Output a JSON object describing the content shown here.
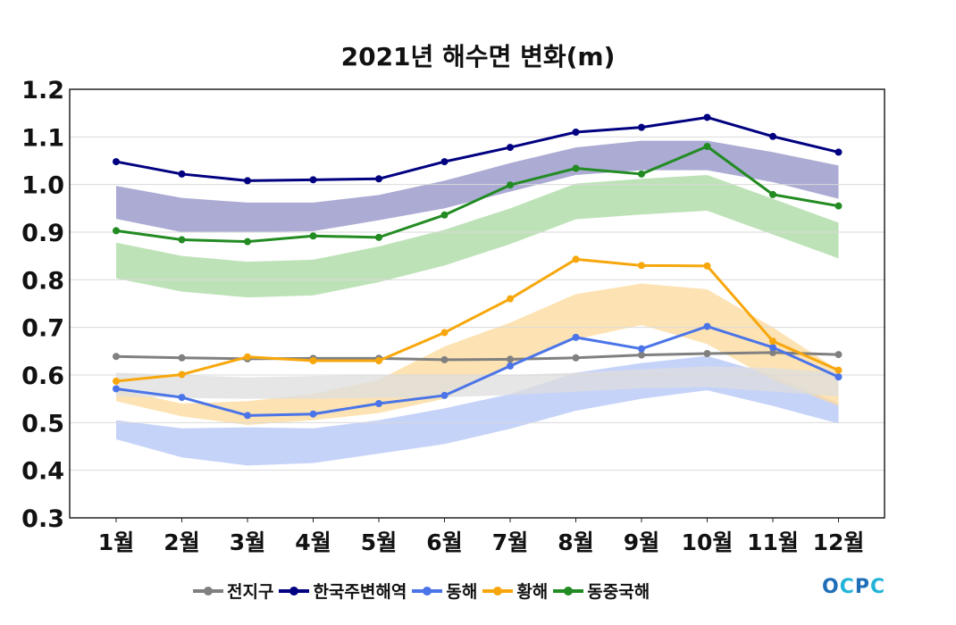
{
  "title": "2021년 해수면 변화(m)",
  "logo_text": "OCPC",
  "colors": {
    "global": "#808080",
    "korea": "#000080",
    "east_sea": "#4a74e8",
    "yellow_sea": "#f7a70c",
    "ecs": "#228b22",
    "band_korea": "#8f8fc6",
    "band_ecs": "#a8d8a0",
    "band_yellow": "#fcd99a",
    "band_east": "#b3c4f7",
    "band_global": "#dedede",
    "logo_blue": "#1f6fb8",
    "logo_cyan": "#22b4d8"
  },
  "chart_data": {
    "type": "line",
    "title": "2021년 해수면 변화(m)",
    "categories": [
      "1월",
      "2월",
      "3월",
      "4월",
      "5월",
      "6월",
      "7월",
      "8월",
      "9월",
      "10월",
      "11월",
      "12월"
    ],
    "ylim": [
      0.3,
      1.2
    ],
    "yticks": [
      "0.3",
      "0.4",
      "0.5",
      "0.6",
      "0.7",
      "0.8",
      "0.9",
      "1.0",
      "1.1",
      "1.2"
    ],
    "grid": true,
    "legend_position": "bottom",
    "series": [
      {
        "name": "전지구",
        "color": "#808080",
        "values": [
          0.639,
          0.636,
          0.634,
          0.635,
          0.635,
          0.632,
          0.633,
          0.636,
          0.642,
          0.645,
          0.647,
          0.643
        ]
      },
      {
        "name": "한국주변해역",
        "color": "#000080",
        "values": [
          1.048,
          1.022,
          1.008,
          1.01,
          1.012,
          1.048,
          1.078,
          1.11,
          1.12,
          1.141,
          1.101,
          1.068
        ]
      },
      {
        "name": "동해",
        "color": "#4a74e8",
        "values": [
          0.571,
          0.553,
          0.515,
          0.518,
          0.54,
          0.557,
          0.619,
          0.679,
          0.655,
          0.702,
          0.658,
          0.596
        ]
      },
      {
        "name": "황해",
        "color": "#f7a70c",
        "values": [
          0.587,
          0.601,
          0.638,
          0.63,
          0.63,
          0.689,
          0.76,
          0.843,
          0.83,
          0.829,
          0.671,
          0.61
        ]
      },
      {
        "name": "동중국해",
        "color": "#228b22",
        "values": [
          0.903,
          0.884,
          0.88,
          0.892,
          0.889,
          0.936,
          0.999,
          1.034,
          1.022,
          1.08,
          0.979,
          0.955
        ]
      }
    ],
    "bands": [
      {
        "color": "#b3c4f7",
        "upper": [
          0.505,
          0.488,
          0.49,
          0.488,
          0.505,
          0.53,
          0.56,
          0.605,
          0.625,
          0.64,
          0.6,
          0.54
        ],
        "lower": [
          0.465,
          0.427,
          0.41,
          0.415,
          0.435,
          0.455,
          0.487,
          0.525,
          0.55,
          0.568,
          0.535,
          0.498
        ]
      },
      {
        "color": "#fcd99a",
        "upper": [
          0.57,
          0.54,
          0.545,
          0.56,
          0.59,
          0.66,
          0.71,
          0.77,
          0.792,
          0.78,
          0.7,
          0.61
        ],
        "lower": [
          0.545,
          0.513,
          0.495,
          0.505,
          0.52,
          0.55,
          0.62,
          0.675,
          0.705,
          0.665,
          0.59,
          0.535
        ]
      },
      {
        "color": "#dedede",
        "upper": [
          0.605,
          0.6,
          0.595,
          0.598,
          0.6,
          0.6,
          0.6,
          0.605,
          0.612,
          0.618,
          0.615,
          0.605
        ],
        "lower": [
          0.555,
          0.552,
          0.55,
          0.55,
          0.552,
          0.553,
          0.558,
          0.565,
          0.572,
          0.575,
          0.565,
          0.555
        ]
      },
      {
        "color": "#a8d8a0",
        "upper": [
          0.878,
          0.85,
          0.838,
          0.842,
          0.87,
          0.905,
          0.95,
          1.002,
          1.012,
          1.02,
          0.97,
          0.92
        ]
      },
      {
        "color": "#8f8fc6",
        "upper": [
          0.997,
          0.972,
          0.962,
          0.962,
          0.978,
          1.008,
          1.045,
          1.078,
          1.092,
          1.092,
          1.068,
          1.04
        ],
        "lower": [
          0.928,
          0.9,
          0.9,
          0.902,
          0.925,
          0.95,
          0.985,
          1.02,
          1.03,
          1.03,
          1.005,
          0.97
        ]
      }
    ]
  }
}
